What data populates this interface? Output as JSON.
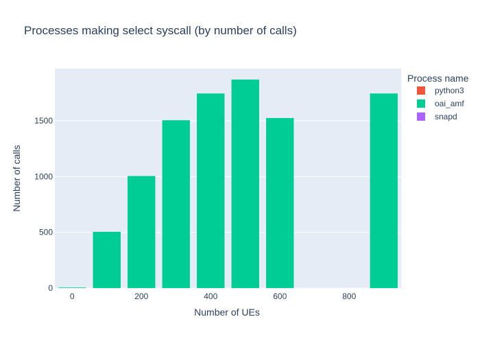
{
  "chart_data": {
    "type": "bar",
    "title": "Processes making select syscall (by number of calls)",
    "xlabel": "Number of UEs",
    "ylabel": "Number of calls",
    "x": [
      0,
      100,
      200,
      300,
      400,
      500,
      600,
      900
    ],
    "series": [
      {
        "name": "python3",
        "color": "#EF553B",
        "values": [
          0,
          0,
          0,
          0,
          0,
          0,
          0,
          0
        ]
      },
      {
        "name": "oai_amf",
        "color": "#00CC96",
        "values": [
          5,
          505,
          1005,
          1505,
          1745,
          1870,
          1525,
          1745
        ]
      },
      {
        "name": "snapd",
        "color": "#AB63FA",
        "values": [
          0,
          0,
          0,
          0,
          0,
          0,
          0,
          0
        ]
      }
    ],
    "xlim": [
      -50,
      950
    ],
    "ylim": [
      0,
      1968
    ],
    "x_ticks": [
      0,
      200,
      400,
      600,
      800
    ],
    "y_ticks": [
      0,
      500,
      1000,
      1500
    ],
    "bar_width": 80,
    "grid": true,
    "plot_bgcolor": "#E5ECF6",
    "legend": {
      "title": "Process name",
      "placement": "top-right"
    }
  }
}
